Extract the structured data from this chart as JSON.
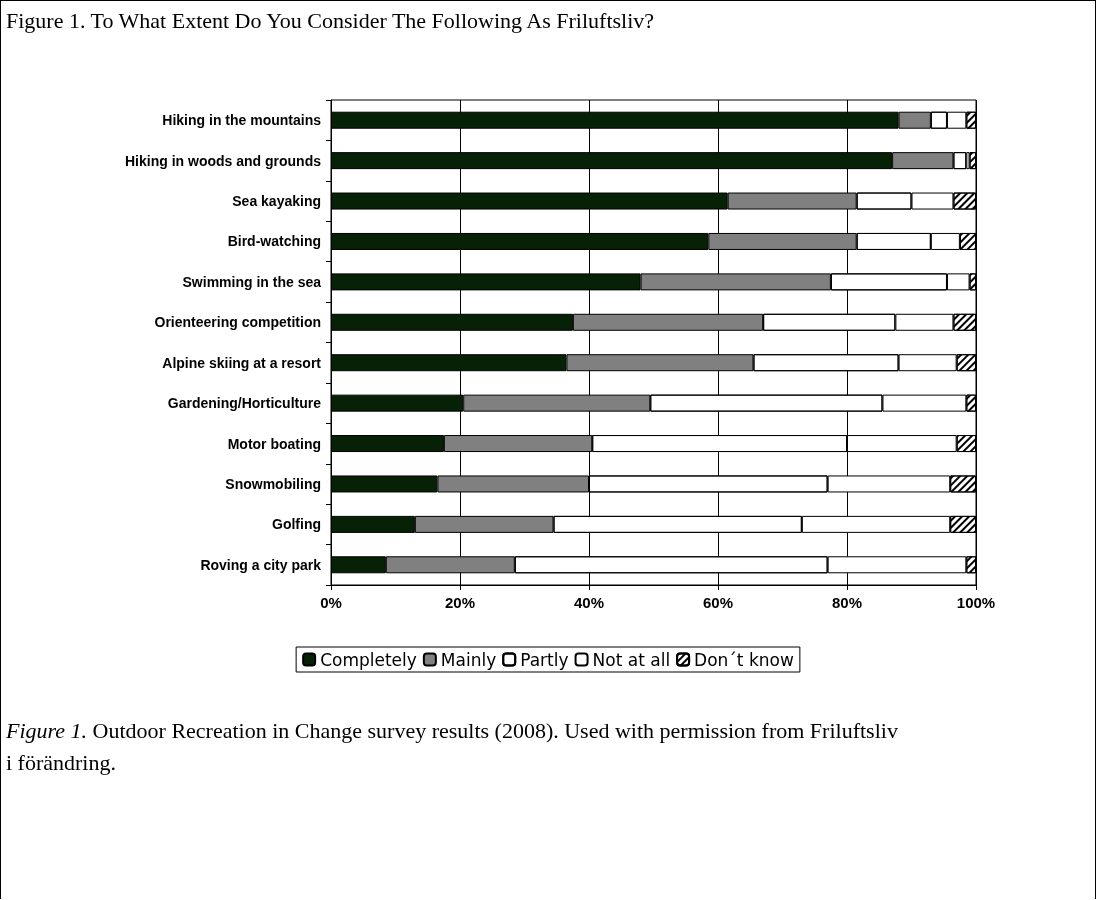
{
  "chart_data": {
    "type": "bar",
    "orientation": "horizontal",
    "stacked": true,
    "title": "Figure 1.  To What Extent Do You Consider The Following As Friluftsliv?",
    "categories": [
      "Hiking in the mountains",
      "Hiking in woods and grounds",
      "Sea kayaking",
      "Bird-watching",
      "Swimming in the sea",
      "Orienteering competition",
      "Alpine skiing at a resort",
      "Gardening/Horticulture",
      "Motor boating",
      "Snowmobiling",
      "Golfing",
      "Roving a city park"
    ],
    "series": [
      {
        "name": "Completely",
        "color": "#062106",
        "values": [
          88,
          87,
          61.5,
          58.5,
          48,
          37.5,
          36.5,
          20.5,
          17.5,
          16.5,
          13,
          8.5
        ]
      },
      {
        "name": "Mainly",
        "color": "#808080",
        "values": [
          5,
          9.5,
          20,
          23,
          29.5,
          29.5,
          29,
          29,
          23,
          23.5,
          21.5,
          20
        ]
      },
      {
        "name": "Partly",
        "color": "#ffffff",
        "values": [
          2.5,
          2,
          8.5,
          11.5,
          18,
          20.5,
          22.5,
          36,
          39.5,
          37,
          38.5,
          48.5
        ]
      },
      {
        "name": "Not at all",
        "color": "#ffffff",
        "values": [
          3,
          0.5,
          6.5,
          4.5,
          3.5,
          9,
          9,
          13,
          17,
          19,
          23,
          21.5
        ]
      },
      {
        "name": "Don´t know",
        "color": "#ffffff",
        "values": [
          1.5,
          1,
          3.5,
          2.5,
          1,
          3.5,
          3,
          1.5,
          3,
          4,
          4,
          1.5
        ]
      }
    ],
    "xlim": [
      0,
      100
    ],
    "xticks": [
      {
        "value": 0,
        "label": "0%"
      },
      {
        "value": 20,
        "label": "20%"
      },
      {
        "value": 40,
        "label": "40%"
      },
      {
        "value": 60,
        "label": "60%"
      },
      {
        "value": 80,
        "label": "80%"
      },
      {
        "value": 100,
        "label": "100%"
      }
    ],
    "grid": "x",
    "legend": "bottom",
    "annotations": [
      "Figure 1.",
      "Outdoor Recreation in Change survey results (2008).  Used with permission from Friluftsliv i förändring."
    ]
  }
}
